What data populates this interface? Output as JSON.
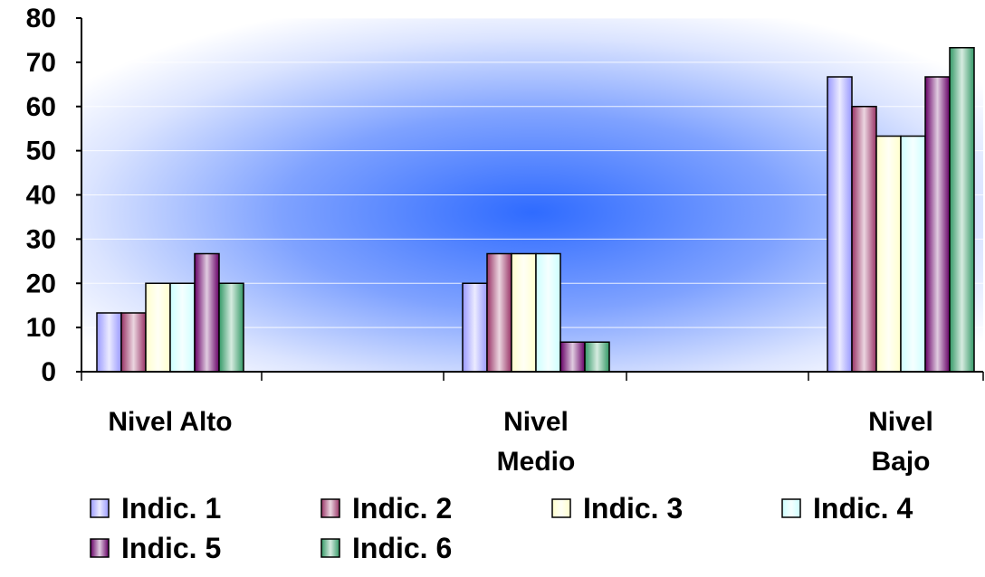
{
  "chart_data": {
    "type": "bar",
    "categories": [
      [
        "Nivel Alto"
      ],
      [
        "Nivel",
        "Medio"
      ],
      [
        "Nivel",
        "Bajo"
      ]
    ],
    "series": [
      {
        "name": "Indic. 1",
        "values": [
          13.3,
          20,
          66.7
        ],
        "color": "#9999ff"
      },
      {
        "name": "Indic. 2",
        "values": [
          13.3,
          26.7,
          60
        ],
        "color": "#993366"
      },
      {
        "name": "Indic. 3",
        "values": [
          20,
          26.7,
          53.3
        ],
        "color": "#ffffcc"
      },
      {
        "name": "Indic. 4",
        "values": [
          20,
          26.7,
          53.3
        ],
        "color": "#ccffff"
      },
      {
        "name": "Indic. 5",
        "values": [
          26.7,
          6.7,
          66.7
        ],
        "color": "#660066"
      },
      {
        "name": "Indic. 6",
        "values": [
          20,
          6.7,
          73.3
        ],
        "color": "#339966"
      }
    ],
    "ylim": [
      0,
      80
    ],
    "yticks": [
      "0",
      "10",
      "20",
      "30",
      "40",
      "50",
      "60",
      "70",
      "80"
    ],
    "grid": true,
    "legend_position": "bottom",
    "background": "blue radial gradient"
  }
}
